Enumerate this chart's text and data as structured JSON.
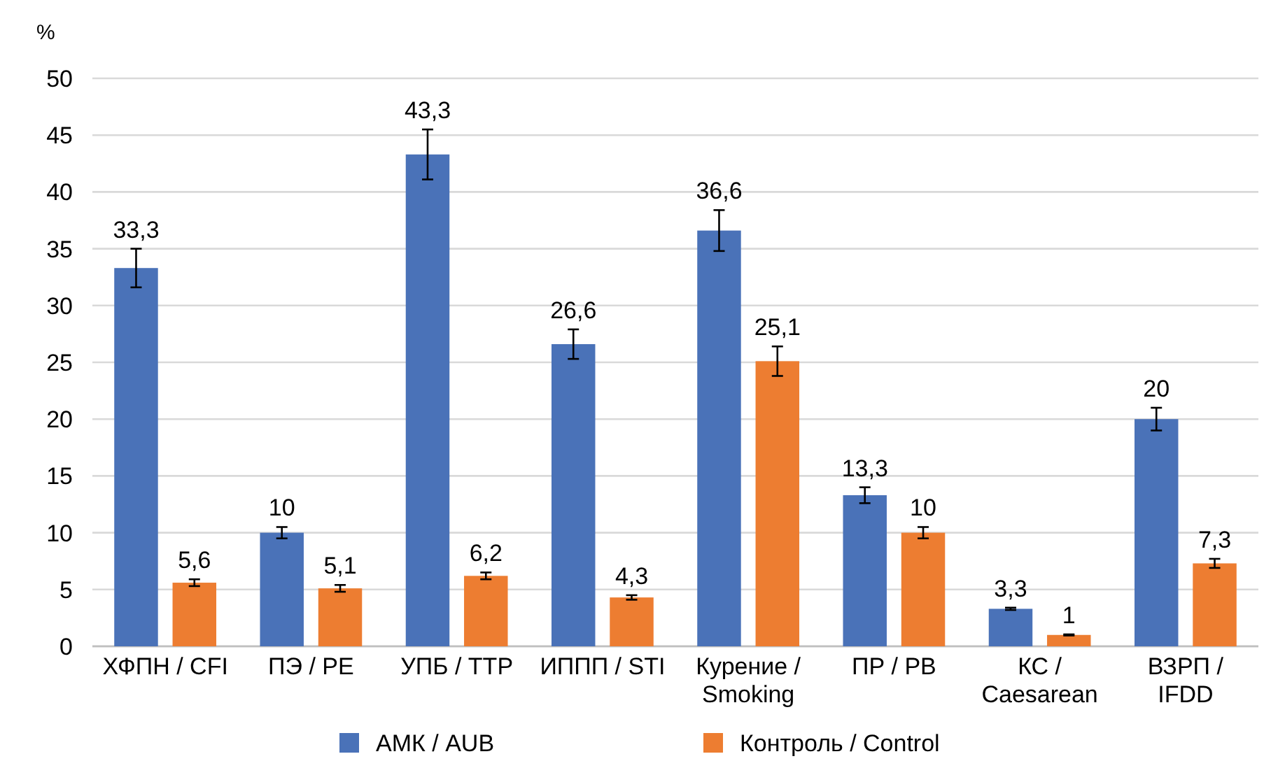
{
  "chart_data": {
    "type": "bar",
    "ylabel": "%",
    "categories": [
      "ХФПН / CFI",
      "ПЭ / PE",
      "УПБ / TTP",
      "ИППП / STI",
      "Курение /\nSmoking",
      "ПР / PB",
      "КС /\nCaesarean",
      "ВЗРП /\nIFDD"
    ],
    "series": [
      {
        "name": "АМК / AUB",
        "color": "#4a72b8",
        "values": [
          33.3,
          10,
          43.3,
          26.6,
          36.6,
          13.3,
          3.3,
          20
        ],
        "errors": [
          1.7,
          0.5,
          2.2,
          1.3,
          1.8,
          0.7,
          0.1,
          1
        ],
        "value_labels": [
          "33,3",
          "10",
          "43,3",
          "26,6",
          "36,6",
          "13,3",
          "3,3",
          "20"
        ]
      },
      {
        "name": "Контроль / Control",
        "color": "#ed7d31",
        "values": [
          5.6,
          5.1,
          6.2,
          4.3,
          25.1,
          10,
          1,
          7.3
        ],
        "errors": [
          0.3,
          0.3,
          0.3,
          0.2,
          1.3,
          0.5,
          0.05,
          0.4
        ],
        "value_labels": [
          "5,6",
          "5,1",
          "6,2",
          "4,3",
          "25,1",
          "10",
          "1",
          "7,3"
        ]
      }
    ],
    "ylim": [
      0,
      50
    ],
    "yticks": [
      0,
      5,
      10,
      15,
      20,
      25,
      30,
      35,
      40,
      45,
      50
    ],
    "grid": "y",
    "legend": "bottom"
  }
}
